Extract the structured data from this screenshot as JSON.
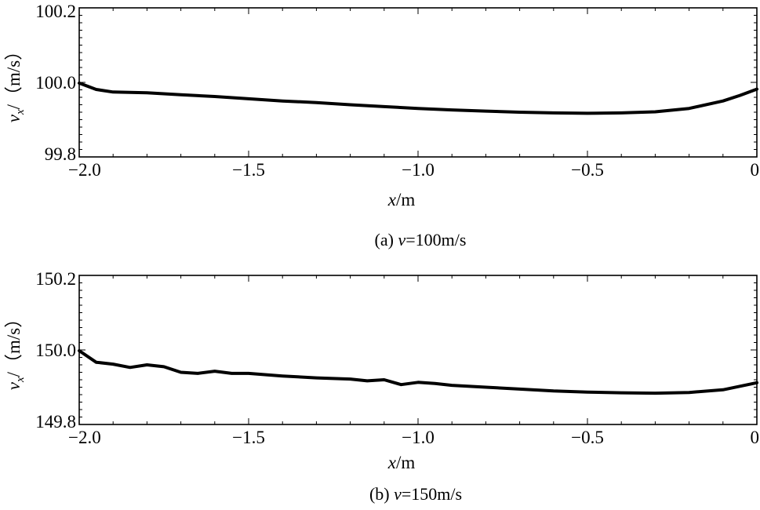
{
  "chart_data": [
    {
      "type": "line",
      "xlabel": {
        "var": "x",
        "unit": "/m"
      },
      "ylabel": {
        "var": "v",
        "sub": "x",
        "unit": "/（m/s）"
      },
      "caption": {
        "prefix": "(a) ",
        "var": "v",
        "rest": "=100m/s"
      },
      "xlim": [
        -2.0,
        0
      ],
      "ylim": [
        99.8,
        100.2
      ],
      "x_tick_labels": [
        "−2.0",
        "−1.5",
        "−1.0",
        "−0.5",
        "0"
      ],
      "y_tick_labels": [
        "99.8",
        "100.0",
        "100.2"
      ],
      "x_ticks": [
        -2.0,
        -1.5,
        -1.0,
        -0.5,
        0
      ],
      "y_ticks": [
        99.8,
        100.0,
        100.2
      ],
      "series": [
        {
          "x": [
            -2.0,
            -1.95,
            -1.9,
            -1.8,
            -1.7,
            -1.6,
            -1.5,
            -1.4,
            -1.3,
            -1.2,
            -1.1,
            -1.0,
            -0.9,
            -0.8,
            -0.7,
            -0.6,
            -0.5,
            -0.4,
            -0.3,
            -0.2,
            -0.1,
            -0.05,
            0
          ],
          "y": [
            99.998,
            99.981,
            99.974,
            99.972,
            99.967,
            99.962,
            99.956,
            99.95,
            99.946,
            99.94,
            99.935,
            99.93,
            99.926,
            99.923,
            99.92,
            99.918,
            99.917,
            99.918,
            99.921,
            99.93,
            99.95,
            99.965,
            99.982
          ]
        }
      ]
    },
    {
      "type": "line",
      "xlabel": {
        "var": "x",
        "unit": "/m"
      },
      "ylabel": {
        "var": "v",
        "sub": "x",
        "unit": "/（m/s）"
      },
      "caption": {
        "prefix": "(b) ",
        "var": "v",
        "rest": "=150m/s"
      },
      "xlim": [
        -2.0,
        0
      ],
      "ylim": [
        149.8,
        150.2
      ],
      "x_tick_labels": [
        "−2.0",
        "−1.5",
        "−1.0",
        "−0.5",
        "0"
      ],
      "y_tick_labels": [
        "149.8",
        "150.0",
        "150.2"
      ],
      "x_ticks": [
        -2.0,
        -1.5,
        -1.0,
        -0.5,
        0
      ],
      "y_ticks": [
        149.8,
        150.0,
        150.2
      ],
      "series": [
        {
          "x": [
            -2.0,
            -1.95,
            -1.9,
            -1.85,
            -1.8,
            -1.75,
            -1.7,
            -1.65,
            -1.6,
            -1.55,
            -1.5,
            -1.4,
            -1.3,
            -1.2,
            -1.15,
            -1.1,
            -1.05,
            -1.0,
            -0.95,
            -0.9,
            -0.8,
            -0.7,
            -0.6,
            -0.5,
            -0.4,
            -0.3,
            -0.2,
            -0.1,
            0
          ],
          "y": [
            149.998,
            149.967,
            149.962,
            149.953,
            149.96,
            149.955,
            149.94,
            149.937,
            149.943,
            149.937,
            149.937,
            149.93,
            149.925,
            149.922,
            149.917,
            149.92,
            149.907,
            149.913,
            149.91,
            149.905,
            149.9,
            149.895,
            149.89,
            149.887,
            149.885,
            149.884,
            149.886,
            149.893,
            149.912
          ]
        }
      ]
    }
  ]
}
